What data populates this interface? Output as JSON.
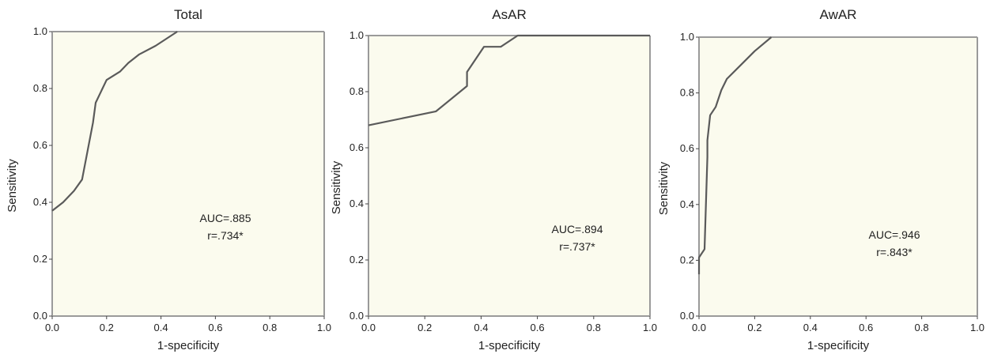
{
  "colors": {
    "plot_bg": "#fbfbee",
    "curve": "#5a5a5a",
    "frame": "#9a9a9a",
    "axis": "#444444"
  },
  "chart_data": [
    {
      "type": "line",
      "title": "Total",
      "xlabel": "1-specificity",
      "ylabel": "Sensitivity",
      "xlim": [
        0.0,
        1.0
      ],
      "ylim": [
        0.0,
        1.0
      ],
      "xticks": [
        "0.0",
        "0.2",
        "0.4",
        "0.6",
        "0.8",
        "1.0"
      ],
      "yticks": [
        "0.0",
        "0.2",
        "0.4",
        "0.6",
        "0.8",
        "1.0"
      ],
      "grid": false,
      "annotations": [
        "AUC=.885",
        "r=.734*"
      ],
      "series": [
        {
          "x": [
            0.0,
            0.04,
            0.08,
            0.11,
            0.13,
            0.15,
            0.16,
            0.2,
            0.25,
            0.28,
            0.32,
            0.38,
            0.46
          ],
          "y": [
            0.37,
            0.4,
            0.44,
            0.48,
            0.58,
            0.68,
            0.75,
            0.83,
            0.86,
            0.89,
            0.92,
            0.95,
            1.0
          ]
        }
      ]
    },
    {
      "type": "line",
      "title": "AsAR",
      "xlabel": "1-specificity",
      "ylabel": "Sensitivity",
      "xlim": [
        0.0,
        1.0
      ],
      "ylim": [
        0.0,
        1.0
      ],
      "xticks": [
        "0.0",
        "0.2",
        "0.4",
        "0.6",
        "0.8",
        "1.0"
      ],
      "yticks": [
        "0.0",
        "0.2",
        "0.4",
        "0.6",
        "0.8",
        "1.0"
      ],
      "grid": false,
      "annotations": [
        "AUC=.894",
        "r=.737*"
      ],
      "series": [
        {
          "x": [
            0.0,
            0.24,
            0.35,
            0.35,
            0.41,
            0.47,
            0.53,
            1.0
          ],
          "y": [
            0.68,
            0.73,
            0.82,
            0.87,
            0.96,
            0.96,
            1.0,
            1.0
          ]
        }
      ]
    },
    {
      "type": "line",
      "title": "AwAR",
      "xlabel": "1-specificity",
      "ylabel": "Sensitivity",
      "xlim": [
        0.0,
        1.0
      ],
      "ylim": [
        0.0,
        1.0
      ],
      "xticks": [
        "0.0",
        "0.2",
        "0.4",
        "0.6",
        "0.8",
        "1.0"
      ],
      "yticks": [
        "0.0",
        "0.2",
        "0.4",
        "0.6",
        "0.8",
        "1.0"
      ],
      "grid": false,
      "annotations": [
        "AUC=.946",
        "r=.843*"
      ],
      "series": [
        {
          "x": [
            0.0,
            0.0,
            0.02,
            0.03,
            0.03,
            0.04,
            0.06,
            0.08,
            0.1,
            0.15,
            0.2,
            0.26
          ],
          "y": [
            0.15,
            0.21,
            0.24,
            0.57,
            0.63,
            0.72,
            0.75,
            0.81,
            0.85,
            0.9,
            0.95,
            1.0
          ]
        }
      ]
    }
  ]
}
